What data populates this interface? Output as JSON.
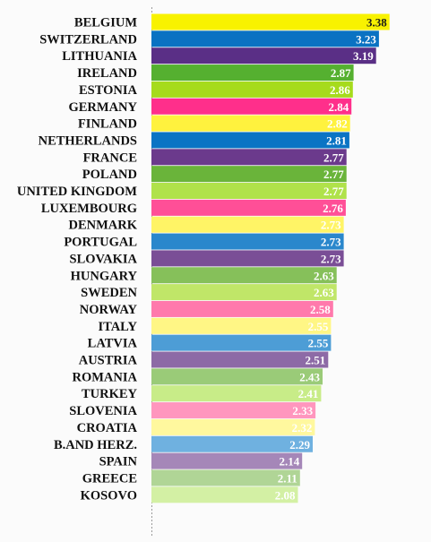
{
  "chart_data": {
    "type": "bar",
    "orientation": "horizontal",
    "title": "",
    "xlabel": "",
    "ylabel": "",
    "grid": false,
    "legend": "none",
    "xlim": [
      0,
      3.5
    ],
    "categories": [
      "BELGIUM",
      "SWITZERLAND",
      "LITHUANIA",
      "IRELAND",
      "ESTONIA",
      "GERMANY",
      "FINLAND",
      "NETHERLANDS",
      "FRANCE",
      "POLAND",
      "UNITED KINGDOM",
      "LUXEMBOURG",
      "DENMARK",
      "PORTUGAL",
      "SLOVAKIA",
      "HUNGARY",
      "SWEDEN",
      "NORWAY",
      "ITALY",
      "LATVIA",
      "AUSTRIA",
      "ROMANIA",
      "TURKEY",
      "SLOVENIA",
      "CROATIA",
      "B.AND HERZ.",
      "SPAIN",
      "GREECE",
      "KOSOVO"
    ],
    "values": [
      3.38,
      3.23,
      3.19,
      2.87,
      2.86,
      2.84,
      2.82,
      2.81,
      2.77,
      2.77,
      2.77,
      2.76,
      2.73,
      2.73,
      2.73,
      2.63,
      2.63,
      2.58,
      2.55,
      2.55,
      2.51,
      2.43,
      2.41,
      2.33,
      2.32,
      2.29,
      2.14,
      2.11,
      2.08
    ],
    "labels": [
      "3.38",
      "3.23",
      "3.19",
      "2.87",
      "2.86",
      "2.84",
      "2.82",
      "2.81",
      "2.77",
      "2.77",
      "2.77",
      "2.76",
      "2.73",
      "2.73",
      "2.73",
      "2.63",
      "2.63",
      "2.58",
      "2.55",
      "2.55",
      "2.51",
      "2.43",
      "2.41",
      "2.33",
      "2.32",
      "2.29",
      "2.14",
      "2.11",
      "2.08"
    ],
    "colors": [
      "#f8f200",
      "#0a72c2",
      "#5a2f86",
      "#55b030",
      "#a6db1c",
      "#ff2f8b",
      "#fff23e",
      "#0a74c4",
      "#6b3a8c",
      "#6ab43a",
      "#b0e24a",
      "#ff4f97",
      "#fff466",
      "#2a87cc",
      "#7a4e96",
      "#86c05a",
      "#c0e668",
      "#ff79ac",
      "#fff685",
      "#4d9dd6",
      "#8d6aa6",
      "#9acb78",
      "#c8ec88",
      "#ff96be",
      "#fff89e",
      "#6fb1e0",
      "#a587b8",
      "#b0d596",
      "#d3f0a4"
    ]
  }
}
